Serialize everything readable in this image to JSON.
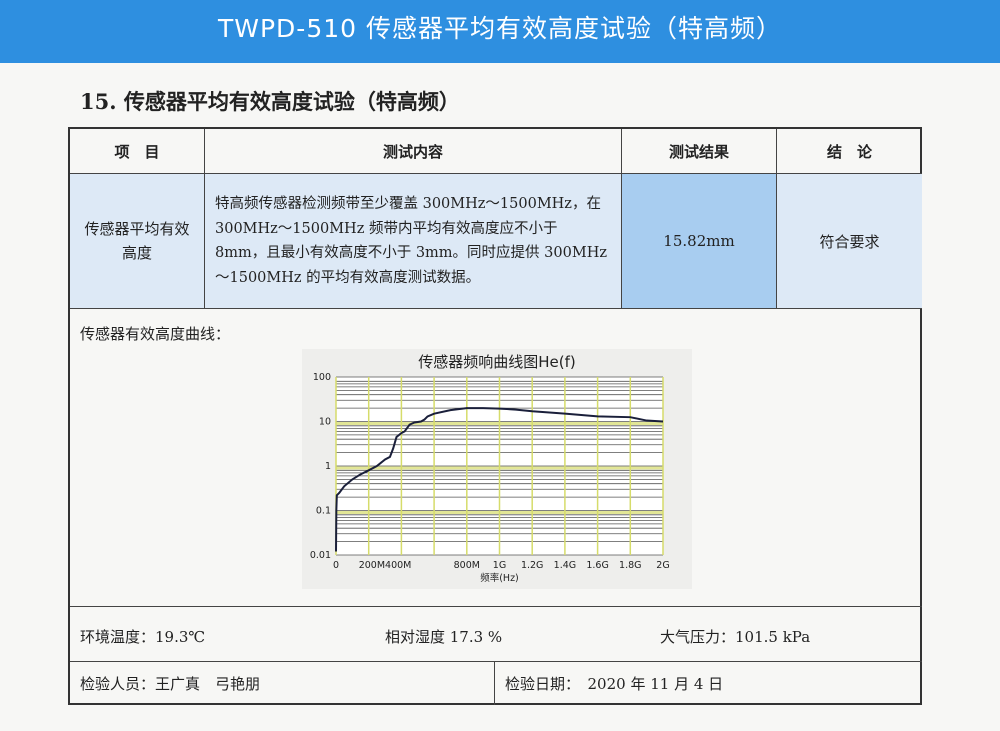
{
  "banner": {
    "title": "TWPD-510 传感器平均有效高度试验（特高频）"
  },
  "section_title": "15. 传感器平均有效高度试验（特高频）",
  "table": {
    "headers": [
      "项　目",
      "测试内容",
      "测试结果",
      "结　论"
    ],
    "row": {
      "item": "传感器平均有效高度",
      "content": "特高频传感器检测频带至少覆盖 300MHz～1500MHz，在 300MHz～1500MHz 频带内平均有效高度应不小于 8mm，且最小有效高度不小于 3mm。同时应提供 300MHz～1500MHz 的平均有效高度测试数据。",
      "result": "15.82mm",
      "conclusion": "符合要求"
    },
    "curve_label": "传感器有效高度曲线：",
    "env": {
      "temperature": "环境温度：19.3℃",
      "humidity": "相对湿度 17.3 %",
      "pressure": "大气压力：101.5 kPa"
    },
    "sign": {
      "inspectors": "检验人员：王广真　弓艳朋",
      "date": "检验日期：　2020 年 11 月 4 日"
    }
  },
  "colors": {
    "banner": "#2e8fe0",
    "row_bg": "#dde9f6",
    "result_bg": "#a8cdf0",
    "curve": "#1a1f3a",
    "major_grid": "#d6dc6a"
  },
  "chart_data": {
    "type": "line",
    "title": "传感器频响曲线图He(f)",
    "xlabel": "频率(Hz)",
    "ylabel": "",
    "xlim": [
      0,
      2000
    ],
    "ylim": [
      0.01,
      100
    ],
    "yscale": "log",
    "grid": true,
    "x_ticks": [
      "0",
      "200M400M",
      "800M",
      "1G",
      "1.2G",
      "1.4G",
      "1.6G",
      "1.8G",
      "2G"
    ],
    "y_ticks": [
      "100",
      "10",
      "1",
      "0.1",
      "0.01"
    ],
    "series": [
      {
        "x": [
          0,
          2,
          5,
          20,
          50,
          100,
          150,
          200,
          250,
          300,
          330,
          350,
          370,
          400,
          420,
          450,
          480,
          520,
          540,
          560,
          600,
          700,
          800,
          900,
          1000,
          1100,
          1200,
          1400,
          1600,
          1800,
          1900,
          2000
        ],
        "y": [
          0.012,
          0.1,
          0.22,
          0.25,
          0.35,
          0.5,
          0.65,
          0.8,
          1.0,
          1.4,
          1.6,
          2.5,
          4.5,
          5.5,
          6,
          8.5,
          9.5,
          10,
          11,
          13,
          15,
          18,
          20,
          20,
          19.5,
          18.5,
          17,
          15,
          13,
          12.5,
          10.5,
          10
        ]
      }
    ]
  }
}
